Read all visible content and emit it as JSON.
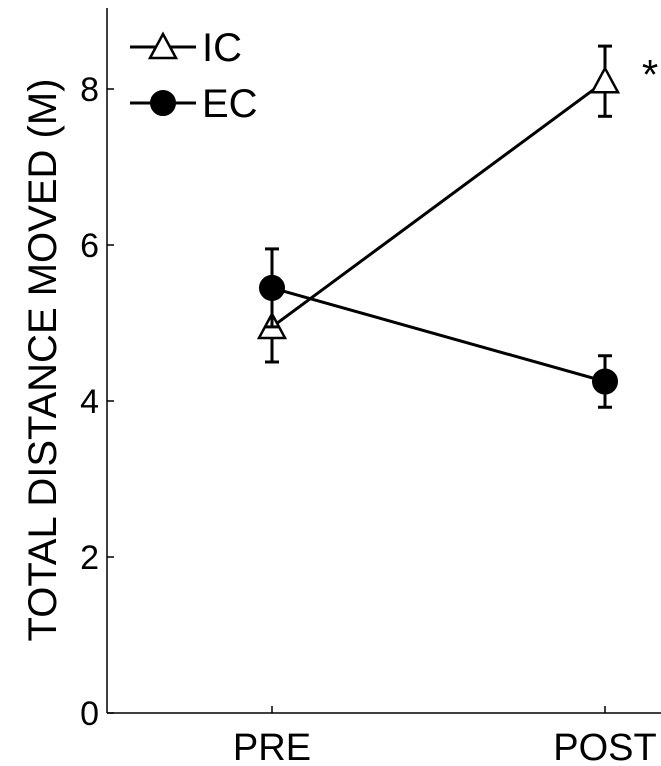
{
  "chart_data": {
    "type": "line",
    "categories": [
      "PRE",
      "POST"
    ],
    "ylabel": "TOTAL DISTANCE MOVED (M)",
    "xlabel": "",
    "ylim": [
      0,
      9
    ],
    "yticks": [
      "0",
      "2",
      "4",
      "6",
      "8"
    ],
    "series": [
      {
        "name": "IC",
        "marker": "triangle-open",
        "values": [
          4.95,
          8.1
        ],
        "errors": [
          0.45,
          0.45
        ]
      },
      {
        "name": "EC",
        "marker": "circle-filled",
        "values": [
          5.45,
          4.25
        ],
        "errors": [
          0.5,
          0.33
        ]
      }
    ],
    "annotations": [
      {
        "text": "*",
        "category": "POST",
        "series": "IC"
      }
    ],
    "legend": "top-left",
    "grid": false
  }
}
